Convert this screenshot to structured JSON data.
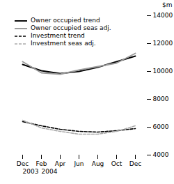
{
  "chart_data": {
    "type": "line",
    "categories": [
      "Dec",
      "Feb",
      "Apr",
      "Jun",
      "Aug",
      "Oct",
      "Dec"
    ],
    "annotations": [
      "2003",
      "2004"
    ],
    "series": [
      {
        "name": "Owner occupied trend",
        "color": "#000000",
        "line_style": "solid",
        "values": [
          10500,
          10050,
          9850,
          10000,
          10300,
          10700,
          11100
        ]
      },
      {
        "name": "Owner occupied seas adj.",
        "color": "#999999",
        "line_style": "solid",
        "values": [
          10700,
          9900,
          9800,
          10100,
          10350,
          10600,
          11300
        ]
      },
      {
        "name": "Investment trend",
        "color": "#000000",
        "line_style": "dashed",
        "values": [
          6400,
          6100,
          5850,
          5700,
          5650,
          5750,
          5900
        ]
      },
      {
        "name": "Investment seas adj.",
        "color": "#aaaaaa",
        "line_style": "dashed",
        "values": [
          6500,
          5950,
          5700,
          5500,
          5500,
          5700,
          6100
        ]
      }
    ],
    "ylabel": "$m",
    "ylim": [
      4000,
      14000
    ],
    "yticks": [
      4000,
      6000,
      8000,
      10000,
      12000,
      14000
    ],
    "grid": false,
    "legend": "upper left"
  }
}
